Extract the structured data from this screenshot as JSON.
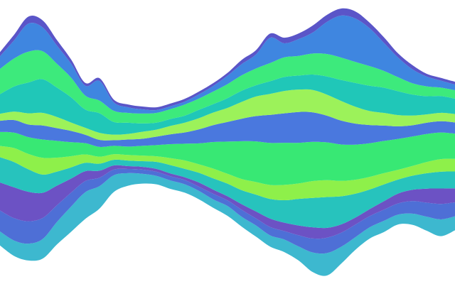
{
  "chart_data": {
    "type": "area",
    "stacked": true,
    "offset": "wiggle",
    "title": "",
    "xlabel": "",
    "ylabel": "",
    "axes_visible": false,
    "grid": false,
    "legend": "none",
    "x": [
      0,
      1,
      2,
      3,
      4,
      5,
      6,
      7,
      8,
      9,
      10,
      11,
      12,
      13,
      14,
      15,
      16,
      17,
      18,
      19,
      20,
      21,
      22,
      23,
      24,
      25,
      26,
      27,
      28,
      29,
      30,
      31,
      32
    ],
    "series": [
      {
        "color": "#3db8cf",
        "values": [
          1.0,
          1.1,
          1.2,
          1.4,
          1.6,
          1.8,
          1.9,
          1.6,
          1.2,
          0.9,
          0.7,
          0.6,
          0.6,
          0.6,
          0.6,
          0.6,
          0.7,
          0.7,
          0.8,
          0.8,
          0.9,
          1.0,
          1.4,
          1.6,
          1.2,
          0.9,
          0.8,
          0.8,
          0.7,
          0.8,
          1.0,
          1.2,
          1.0
        ]
      },
      {
        "color": "#4e6fd6",
        "values": [
          1.5,
          1.6,
          1.6,
          1.5,
          1.2,
          1.0,
          0.8,
          0.6,
          0.4,
          0.3,
          0.3,
          0.3,
          0.3,
          0.3,
          0.3,
          0.4,
          0.4,
          0.5,
          0.5,
          0.6,
          0.6,
          0.8,
          1.0,
          1.1,
          1.0,
          0.9,
          0.8,
          0.8,
          0.8,
          0.9,
          1.0,
          1.1,
          1.0
        ]
      },
      {
        "color": "#6c52c4",
        "values": [
          2.0,
          2.2,
          2.1,
          1.8,
          1.4,
          1.0,
          0.7,
          0.5,
          0.3,
          0.2,
          0.2,
          0.2,
          0.2,
          0.2,
          0.3,
          0.3,
          0.3,
          0.4,
          0.5,
          0.6,
          0.6,
          0.7,
          0.8,
          0.7,
          0.6,
          0.5,
          0.5,
          0.6,
          0.7,
          0.8,
          1.0,
          1.1,
          1.0
        ]
      },
      {
        "color": "#27c3bd",
        "values": [
          1.8,
          1.8,
          1.6,
          1.3,
          1.0,
          0.8,
          0.6,
          0.5,
          0.4,
          0.4,
          0.4,
          0.5,
          0.6,
          0.6,
          0.7,
          0.8,
          0.9,
          1.0,
          1.2,
          1.4,
          1.6,
          1.9,
          2.1,
          2.2,
          2.0,
          1.7,
          1.4,
          1.2,
          1.0,
          1.0,
          1.1,
          1.2,
          1.2
        ]
      },
      {
        "color": "#8ef04a",
        "values": [
          0.8,
          1.0,
          1.1,
          1.2,
          1.0,
          0.8,
          0.6,
          0.5,
          0.4,
          0.4,
          0.4,
          0.4,
          0.5,
          0.6,
          0.6,
          0.7,
          0.7,
          0.8,
          0.9,
          1.0,
          1.1,
          1.1,
          1.2,
          1.2,
          1.1,
          1.0,
          0.9,
          0.8,
          0.7,
          0.7,
          0.8,
          0.9,
          0.9
        ]
      },
      {
        "color": "#38e874",
        "values": [
          1.0,
          1.1,
          1.2,
          1.3,
          1.2,
          1.0,
          0.8,
          0.7,
          0.6,
          0.6,
          0.7,
          0.8,
          1.0,
          1.2,
          1.5,
          1.9,
          2.3,
          2.7,
          2.9,
          3.0,
          3.0,
          2.9,
          2.8,
          2.7,
          2.6,
          2.5,
          2.4,
          2.3,
          2.2,
          2.1,
          2.0,
          1.9,
          1.8
        ]
      },
      {
        "color": "#4a78de",
        "values": [
          0.8,
          0.9,
          0.9,
          1.0,
          0.9,
          0.8,
          0.6,
          0.5,
          0.4,
          0.5,
          0.5,
          0.6,
          0.7,
          0.8,
          1.0,
          1.2,
          1.4,
          1.6,
          1.8,
          2.0,
          2.1,
          2.2,
          2.1,
          1.9,
          1.7,
          1.5,
          1.3,
          1.1,
          0.9,
          0.8,
          0.8,
          0.8,
          0.8
        ]
      },
      {
        "color": "#9cf25a",
        "values": [
          0.5,
          0.6,
          0.8,
          0.9,
          0.8,
          0.6,
          0.5,
          0.5,
          0.4,
          0.4,
          0.5,
          0.5,
          0.6,
          0.7,
          0.8,
          0.9,
          1.0,
          1.2,
          1.4,
          1.5,
          1.6,
          1.6,
          1.6,
          1.5,
          1.4,
          1.2,
          1.0,
          0.9,
          0.8,
          0.7,
          0.6,
          0.6,
          0.6
        ]
      },
      {
        "color": "#20c7b8",
        "values": [
          1.4,
          1.8,
          2.2,
          2.4,
          2.1,
          1.8,
          1.3,
          1.4,
          0.9,
          0.8,
          0.6,
          0.5,
          0.5,
          0.5,
          0.6,
          0.6,
          0.7,
          0.8,
          0.8,
          0.9,
          1.0,
          1.0,
          1.1,
          1.3,
          1.5,
          1.7,
          1.8,
          1.8,
          1.7,
          1.5,
          1.3,
          1.2,
          1.1
        ]
      },
      {
        "color": "#3dea7c",
        "values": [
          1.8,
          2.0,
          2.2,
          2.0,
          1.7,
          1.4,
          1.0,
          0.9,
          0.8,
          0.7,
          0.7,
          0.7,
          0.7,
          0.8,
          0.8,
          0.9,
          1.0,
          1.1,
          1.2,
          1.3,
          1.4,
          1.4,
          1.5,
          1.6,
          1.6,
          1.5,
          1.4,
          1.2,
          1.0,
          0.8,
          0.7,
          0.6,
          0.6
        ]
      },
      {
        "color": "#3f86e0",
        "values": [
          0.9,
          1.3,
          2.0,
          1.7,
          1.3,
          1.0,
          0.7,
          1.4,
          0.6,
          0.4,
          0.3,
          0.2,
          0.2,
          0.2,
          0.3,
          0.4,
          0.6,
          0.8,
          1.0,
          1.8,
          1.0,
          1.2,
          1.5,
          2.3,
          3.0,
          3.1,
          2.7,
          2.0,
          1.4,
          1.0,
          0.7,
          0.5,
          0.4
        ]
      },
      {
        "color": "#5a55c8",
        "values": [
          0.3,
          0.4,
          0.5,
          0.5,
          0.4,
          0.3,
          0.2,
          0.2,
          0.2,
          0.2,
          0.2,
          0.2,
          0.2,
          0.2,
          0.2,
          0.2,
          0.2,
          0.3,
          0.3,
          0.3,
          0.4,
          0.4,
          0.5,
          0.5,
          0.5,
          0.5,
          0.4,
          0.4,
          0.3,
          0.3,
          0.2,
          0.2,
          0.2
        ]
      }
    ]
  }
}
